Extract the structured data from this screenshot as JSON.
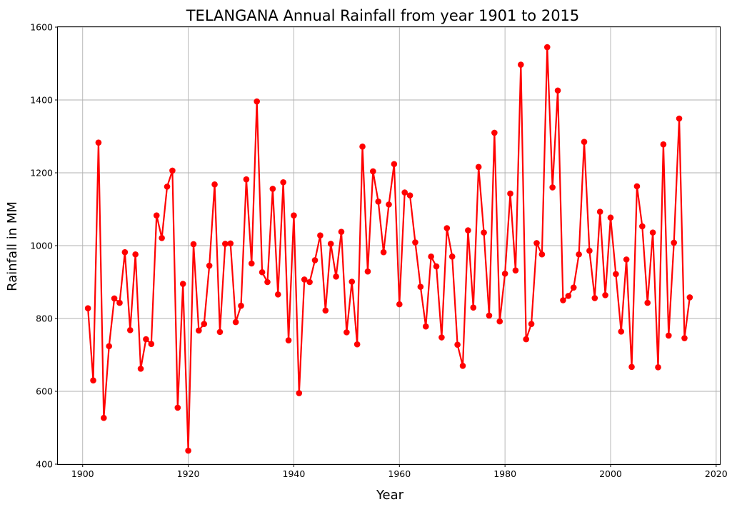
{
  "chart_data": {
    "type": "line",
    "title": "TELANGANA Annual Rainfall from year 1901 to 2015",
    "xlabel": "Year",
    "ylabel": "Rainfall in MM",
    "xlim": [
      1895.3,
      2020.7
    ],
    "ylim": [
      400,
      1600
    ],
    "xticks": [
      1900,
      1920,
      1940,
      1960,
      1980,
      2000,
      2020
    ],
    "yticks": [
      400,
      600,
      800,
      1000,
      1200,
      1400,
      1600
    ],
    "grid": true,
    "line_color": "#ff0000",
    "marker": "circle",
    "series": [
      {
        "x": [
          1901,
          1902,
          1903,
          1904,
          1905,
          1906,
          1907,
          1908,
          1909,
          1910,
          1911,
          1912,
          1913,
          1914,
          1915,
          1916,
          1917,
          1918,
          1919,
          1920,
          1921,
          1922,
          1923,
          1924,
          1925,
          1926,
          1927,
          1928,
          1929,
          1930,
          1931,
          1932,
          1933,
          1934,
          1935,
          1936,
          1937,
          1938,
          1939,
          1940,
          1941,
          1942,
          1943,
          1944,
          1945,
          1946,
          1947,
          1948,
          1949,
          1950,
          1951,
          1952,
          1953,
          1954,
          1955,
          1956,
          1957,
          1958,
          1959,
          1960,
          1961,
          1962,
          1963,
          1964,
          1965,
          1966,
          1967,
          1968,
          1969,
          1970,
          1971,
          1972,
          1973,
          1974,
          1975,
          1976,
          1977,
          1978,
          1979,
          1980,
          1981,
          1982,
          1983,
          1984,
          1985,
          1986,
          1987,
          1988,
          1989,
          1990,
          1991,
          1992,
          1993,
          1994,
          1995,
          1996,
          1997,
          1998,
          1999,
          2000,
          2001,
          2002,
          2003,
          2004,
          2005,
          2006,
          2007,
          2008,
          2009,
          2010,
          2011,
          2012,
          2013,
          2014,
          2015
        ],
        "values": [
          828,
          630,
          1283,
          527,
          724,
          855,
          843,
          982,
          768,
          976,
          662,
          743,
          730,
          1083,
          1021,
          1162,
          1206,
          555,
          895,
          437,
          1004,
          767,
          785,
          945,
          1168,
          763,
          1005,
          1006,
          790,
          835,
          1182,
          951,
          1396,
          927,
          900,
          1156,
          866,
          1174,
          740,
          1083,
          595,
          907,
          900,
          960,
          1028,
          822,
          1005,
          915,
          1038,
          762,
          901,
          729,
          1272,
          929,
          1204,
          1121,
          982,
          1113,
          1224,
          839,
          1146,
          1138,
          1009,
          887,
          778,
          970,
          943,
          748,
          1048,
          970,
          728,
          670,
          1042,
          830,
          1216,
          1036,
          808,
          1310,
          792,
          923,
          1143,
          932,
          1497,
          743,
          785,
          1007,
          976,
          1545,
          1160,
          1426,
          850,
          862,
          885,
          976,
          1285,
          986,
          856,
          1093,
          864,
          1077,
          922,
          764,
          962,
          667,
          1163,
          1053,
          843,
          1036,
          666,
          1278,
          753,
          1008,
          1349,
          746,
          858
        ]
      }
    ]
  }
}
